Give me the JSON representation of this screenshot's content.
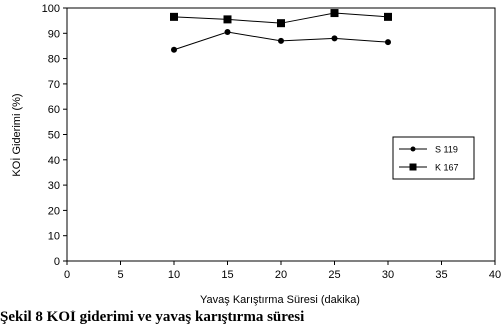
{
  "caption": "Şekil 8 KOİ giderimi ve yavaş karıştırma süresi",
  "chart_data": {
    "type": "line",
    "xlabel": "Yavaş Karıştırma Süresi (dakika)",
    "ylabel": "KOİ Giderimi (%)",
    "xlim": [
      0,
      40
    ],
    "ylim": [
      0,
      100
    ],
    "xticks": [
      0,
      5,
      10,
      15,
      20,
      25,
      30,
      35,
      40
    ],
    "yticks": [
      0,
      10,
      20,
      30,
      40,
      50,
      60,
      70,
      80,
      90,
      100
    ],
    "grid": false,
    "legend_position": "right",
    "series": [
      {
        "name": "S 119",
        "marker": "circle",
        "x": [
          10,
          15,
          20,
          25,
          30
        ],
        "y": [
          83.5,
          90.5,
          87,
          88,
          86.5
        ]
      },
      {
        "name": "K 167",
        "marker": "square",
        "x": [
          10,
          15,
          20,
          25,
          30
        ],
        "y": [
          96.5,
          95.5,
          94,
          98,
          96.5
        ]
      }
    ]
  }
}
